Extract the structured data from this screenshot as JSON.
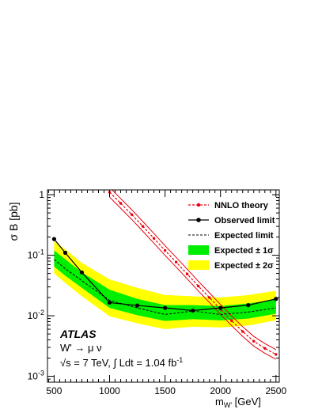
{
  "chart_data": {
    "type": "line",
    "ylog": true,
    "xlim": [
      440,
      2530
    ],
    "ylim": [
      0.0008,
      1.2
    ],
    "x_ticks": [
      500,
      1000,
      1500,
      2000,
      2500
    ],
    "x_tick_labels": [
      "500",
      "1000",
      "1500",
      "2000",
      "2500"
    ],
    "y_ticks": [
      1,
      0.1,
      0.01,
      0.001
    ],
    "y_tick_labels": [
      {
        "base": "1",
        "exp": ""
      },
      {
        "base": "10",
        "exp": "-1"
      },
      {
        "base": "10",
        "exp": "-2"
      },
      {
        "base": "10",
        "exp": "-3"
      }
    ],
    "xlabel": {
      "main": "m",
      "sub": "W'",
      "unit": " [GeV]"
    },
    "ylabel": "σ B [pb]",
    "annotations": {
      "experiment": "ATLAS",
      "process": "W' → μ ν",
      "energy": "√s = 7 TeV,  ∫ Ldt = 1.04 fb",
      "energy_exp": "-1"
    },
    "legend_position": "top-right",
    "legend": [
      {
        "label": "NNLO theory",
        "style": "theory"
      },
      {
        "label": "Observed limit",
        "style": "observed"
      },
      {
        "label": "Expected  limit",
        "style": "expected"
      },
      {
        "label": "Expected ± 1σ",
        "style": "band1"
      },
      {
        "label": "Expected ± 2σ",
        "style": "band2"
      }
    ],
    "colors": {
      "theory": "#e8000b",
      "band1": "#00ee00",
      "band2": "#ffff00",
      "line": "#000000"
    },
    "x": [
      500,
      600,
      750,
      1000,
      1250,
      1500,
      1750,
      2000,
      2250,
      2500
    ],
    "series": [
      {
        "name": "Observed limit",
        "values": [
          0.185,
          0.11,
          0.052,
          0.0165,
          0.0148,
          0.0135,
          0.0122,
          0.0135,
          0.015,
          0.019
        ]
      },
      {
        "name": "Expected  limit",
        "values": [
          0.085,
          0.06,
          0.038,
          0.018,
          0.0135,
          0.0105,
          0.012,
          0.0105,
          0.0115,
          0.0135
        ]
      }
    ],
    "band_1sigma": {
      "low": [
        0.065,
        0.046,
        0.029,
        0.0135,
        0.0102,
        0.0082,
        0.0088,
        0.0084,
        0.009,
        0.0108
      ],
      "high": [
        0.12,
        0.086,
        0.052,
        0.027,
        0.019,
        0.015,
        0.015,
        0.0145,
        0.016,
        0.0185
      ]
    },
    "band_2sigma": {
      "low": [
        0.05,
        0.035,
        0.021,
        0.0098,
        0.0075,
        0.006,
        0.0066,
        0.0064,
        0.0069,
        0.0084
      ],
      "high": [
        0.17,
        0.125,
        0.075,
        0.04,
        0.029,
        0.022,
        0.021,
        0.02,
        0.022,
        0.026
      ]
    },
    "theory": {
      "x": [
        1000,
        1100,
        1200,
        1300,
        1400,
        1500,
        1600,
        1700,
        1800,
        1900,
        2000,
        2100,
        2200,
        2300,
        2400,
        2500
      ],
      "values": [
        1.1,
        0.72,
        0.47,
        0.3,
        0.19,
        0.12,
        0.077,
        0.049,
        0.031,
        0.02,
        0.0128,
        0.0083,
        0.0055,
        0.0038,
        0.0029,
        0.0023
      ],
      "band_low_factor": 0.83,
      "band_high_factor": 1.2
    }
  }
}
